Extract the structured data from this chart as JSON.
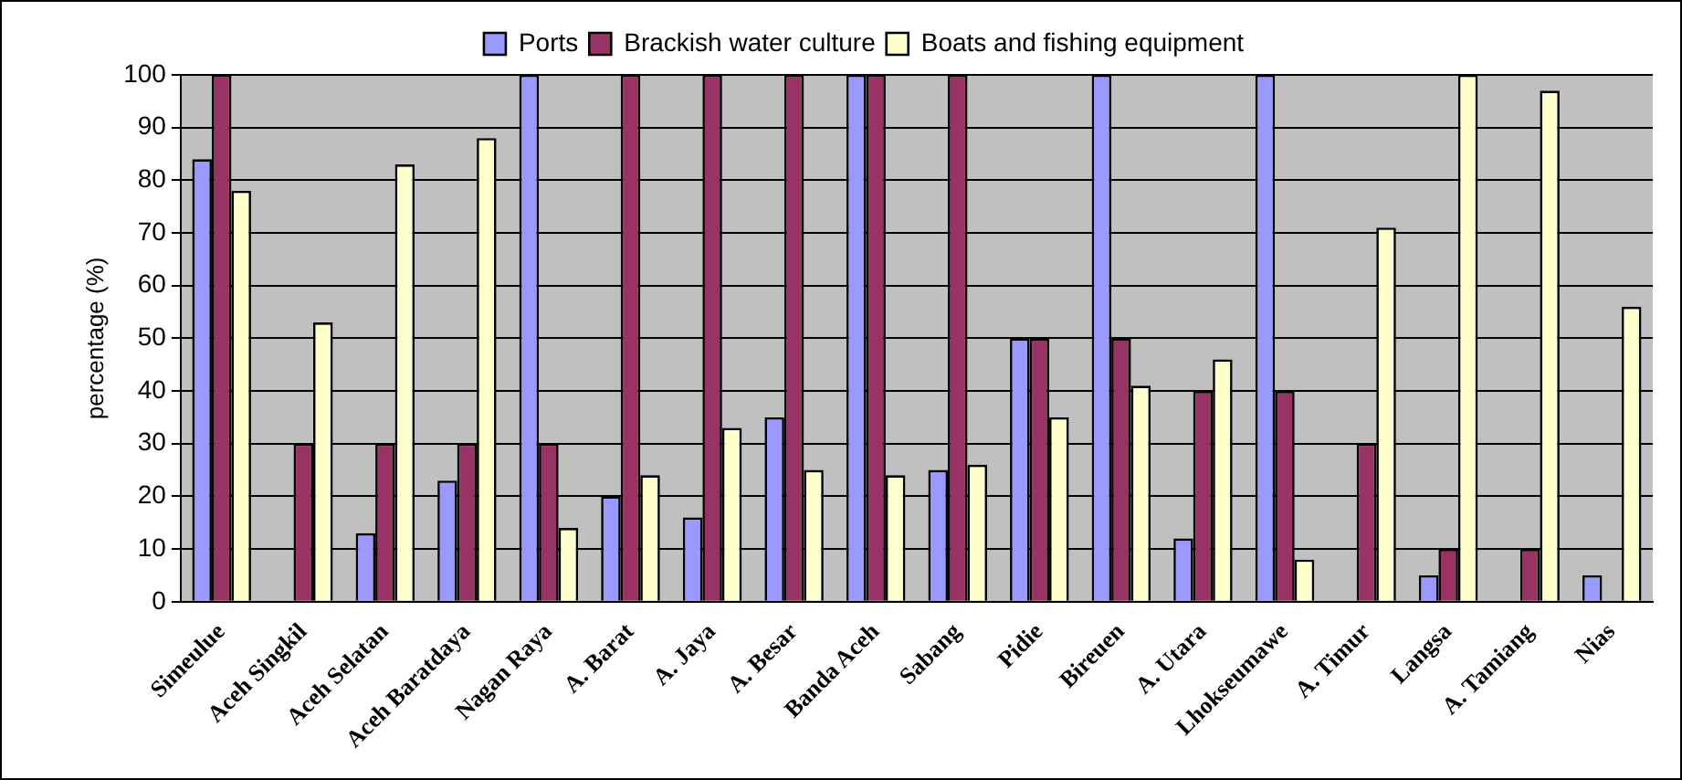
{
  "chart_data": {
    "type": "bar",
    "ylabel": "percentage (%)",
    "categories": [
      "Simeulue",
      "Aceh Singkil",
      "Aceh Selatan",
      "Aceh Baratdaya",
      "Nagan Raya",
      "A. Barat",
      "A. Jaya",
      "A. Besar",
      "Banda Aceh",
      "Sabang",
      "Pidie",
      "Bireuen",
      "A. Utara",
      "Lhokseumawe",
      "A. Timur",
      "Langsa",
      "A. Tamiang",
      "Nias"
    ],
    "series": [
      {
        "name": "Ports",
        "color": "#9999ff",
        "values": [
          84,
          0,
          13,
          23,
          100,
          20,
          16,
          35,
          100,
          25,
          50,
          100,
          12,
          100,
          0,
          5,
          0,
          5
        ]
      },
      {
        "name": "Brackish water culture",
        "color": "#993366",
        "values": [
          100,
          30,
          30,
          30,
          30,
          100,
          100,
          100,
          100,
          100,
          50,
          50,
          40,
          40,
          30,
          10,
          10,
          0
        ]
      },
      {
        "name": "Boats and fishing equipment",
        "color": "#ffffcc",
        "values": [
          78,
          53,
          83,
          88,
          14,
          24,
          33,
          25,
          24,
          26,
          35,
          41,
          46,
          8,
          71,
          100,
          97,
          56
        ]
      }
    ],
    "ylim": [
      0,
      100
    ],
    "yticks": [
      0,
      10,
      20,
      30,
      40,
      50,
      60,
      70,
      80,
      90,
      100
    ],
    "grid": "y",
    "legend": "top"
  }
}
